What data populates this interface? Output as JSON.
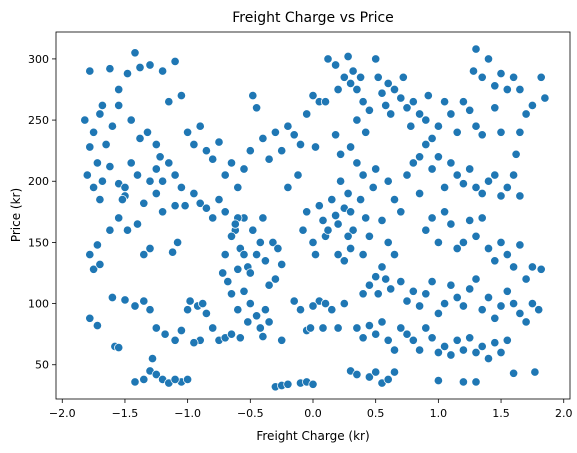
{
  "chart_data": {
    "type": "scatter",
    "title": "Freight Charge vs Price",
    "xlabel": "Freight Charge (kr)",
    "ylabel": "Price (kr)",
    "xlim": [
      -2.05,
      2.05
    ],
    "ylim": [
      22,
      322
    ],
    "xticks": [
      -2.0,
      -1.5,
      -1.0,
      -0.5,
      0.0,
      0.5,
      1.0,
      1.5,
      2.0
    ],
    "xtick_labels": [
      "−2.0",
      "−1.5",
      "−1.0",
      "−0.5",
      "0.0",
      "0.5",
      "1.0",
      "1.5",
      "2.0"
    ],
    "yticks": [
      50,
      100,
      150,
      200,
      250,
      300
    ],
    "ytick_labels": [
      "50",
      "100",
      "150",
      "200",
      "250",
      "300"
    ],
    "grid": false,
    "marker_color": "#1f77b4",
    "points": [
      [
        -1.78,
        290
      ],
      [
        -1.68,
        262
      ],
      [
        -1.62,
        292
      ],
      [
        -1.55,
        275
      ],
      [
        -1.48,
        288
      ],
      [
        -1.42,
        305
      ],
      [
        -1.38,
        293
      ],
      [
        -1.3,
        295
      ],
      [
        -1.2,
        290
      ],
      [
        -1.1,
        298
      ],
      [
        -1.15,
        265
      ],
      [
        -1.05,
        270
      ],
      [
        -1.82,
        250
      ],
      [
        -1.75,
        240
      ],
      [
        -1.7,
        255
      ],
      [
        -1.65,
        230
      ],
      [
        -1.6,
        245
      ],
      [
        -1.55,
        262
      ],
      [
        -1.45,
        250
      ],
      [
        -1.38,
        235
      ],
      [
        -1.32,
        240
      ],
      [
        -1.25,
        230
      ],
      [
        -1.78,
        228
      ],
      [
        -1.72,
        215
      ],
      [
        -1.8,
        205
      ],
      [
        -1.75,
        195
      ],
      [
        -1.7,
        185
      ],
      [
        -1.68,
        200
      ],
      [
        -1.62,
        212
      ],
      [
        -1.55,
        198
      ],
      [
        -1.5,
        188
      ],
      [
        -1.45,
        215
      ],
      [
        -1.4,
        205
      ],
      [
        -1.35,
        182
      ],
      [
        -1.3,
        200
      ],
      [
        -1.25,
        190
      ],
      [
        -1.15,
        215
      ],
      [
        -1.1,
        205
      ],
      [
        -1.05,
        195
      ],
      [
        -1.02,
        180
      ],
      [
        -0.95,
        190
      ],
      [
        -0.9,
        182
      ],
      [
        -0.85,
        178
      ],
      [
        -0.8,
        170
      ],
      [
        -0.75,
        185
      ],
      [
        -0.7,
        175
      ],
      [
        -1.1,
        180
      ],
      [
        -1.2,
        175
      ],
      [
        -1.0,
        240
      ],
      [
        -0.95,
        230
      ],
      [
        -0.9,
        245
      ],
      [
        -0.85,
        225
      ],
      [
        -0.8,
        218
      ],
      [
        -0.75,
        232
      ],
      [
        -0.7,
        205
      ],
      [
        -0.65,
        215
      ],
      [
        -0.6,
        195
      ],
      [
        -0.55,
        210
      ],
      [
        -0.5,
        225
      ],
      [
        -0.45,
        260
      ],
      [
        -0.48,
        270
      ],
      [
        -0.4,
        235
      ],
      [
        -0.35,
        218
      ],
      [
        -0.3,
        240
      ],
      [
        -0.25,
        225
      ],
      [
        -0.2,
        245
      ],
      [
        -0.15,
        238
      ],
      [
        -0.1,
        230
      ],
      [
        -0.05,
        255
      ],
      [
        0.0,
        270
      ],
      [
        0.05,
        265
      ],
      [
        0.02,
        228
      ],
      [
        -0.12,
        205
      ],
      [
        -0.2,
        195
      ],
      [
        -1.78,
        140
      ],
      [
        -1.72,
        148
      ],
      [
        -1.75,
        128
      ],
      [
        -1.7,
        132
      ],
      [
        -1.62,
        160
      ],
      [
        -1.55,
        170
      ],
      [
        -1.48,
        160
      ],
      [
        -1.4,
        165
      ],
      [
        -1.35,
        140
      ],
      [
        -1.3,
        145
      ],
      [
        -1.08,
        150
      ],
      [
        -1.12,
        142
      ],
      [
        -1.6,
        105
      ],
      [
        -1.5,
        103
      ],
      [
        -1.42,
        98
      ],
      [
        -1.35,
        102
      ],
      [
        -1.3,
        95
      ],
      [
        -1.78,
        88
      ],
      [
        -1.72,
        82
      ],
      [
        -1.58,
        65
      ],
      [
        -1.55,
        64
      ],
      [
        -1.3,
        45
      ],
      [
        -1.28,
        55
      ],
      [
        -1.35,
        38
      ],
      [
        -1.42,
        36
      ],
      [
        -1.25,
        42
      ],
      [
        -1.2,
        38
      ],
      [
        -1.15,
        35
      ],
      [
        -1.05,
        36
      ],
      [
        -1.0,
        38
      ],
      [
        -1.1,
        38
      ],
      [
        -1.25,
        80
      ],
      [
        -1.18,
        75
      ],
      [
        -1.1,
        70
      ],
      [
        -1.05,
        78
      ],
      [
        -1.0,
        95
      ],
      [
        -0.98,
        102
      ],
      [
        -0.92,
        98
      ],
      [
        -0.88,
        100
      ],
      [
        -0.85,
        92
      ],
      [
        -0.8,
        80
      ],
      [
        -0.75,
        70
      ],
      [
        -0.7,
        72
      ],
      [
        -0.9,
        70
      ],
      [
        -0.95,
        68
      ],
      [
        -0.62,
        160
      ],
      [
        -0.58,
        145
      ],
      [
        -0.55,
        170
      ],
      [
        -0.52,
        130
      ],
      [
        -0.5,
        125
      ],
      [
        -0.48,
        160
      ],
      [
        -0.45,
        140
      ],
      [
        -0.42,
        150
      ],
      [
        -0.4,
        170
      ],
      [
        -0.38,
        135
      ],
      [
        -0.35,
        115
      ],
      [
        -0.32,
        150
      ],
      [
        -0.3,
        120
      ],
      [
        -0.28,
        145
      ],
      [
        -0.25,
        132
      ],
      [
        -0.55,
        110
      ],
      [
        -0.5,
        100
      ],
      [
        -0.45,
        90
      ],
      [
        -0.42,
        80
      ],
      [
        -0.38,
        95
      ],
      [
        -0.35,
        85
      ],
      [
        -0.6,
        95
      ],
      [
        -0.65,
        75
      ],
      [
        -0.58,
        72
      ],
      [
        -0.52,
        85
      ],
      [
        -0.4,
        73
      ],
      [
        -0.25,
        70
      ],
      [
        -0.15,
        102
      ],
      [
        -0.1,
        95
      ],
      [
        -0.05,
        78
      ],
      [
        -0.08,
        160
      ],
      [
        -0.05,
        175
      ],
      [
        0.0,
        150
      ],
      [
        0.02,
        140
      ],
      [
        0.05,
        180
      ],
      [
        0.08,
        168
      ],
      [
        0.1,
        155
      ],
      [
        0.12,
        160
      ],
      [
        0.15,
        185
      ],
      [
        0.18,
        172
      ],
      [
        0.2,
        165
      ],
      [
        0.22,
        200
      ],
      [
        0.25,
        178
      ],
      [
        0.28,
        190
      ],
      [
        0.3,
        175
      ],
      [
        0.32,
        160
      ],
      [
        0.35,
        215
      ],
      [
        0.38,
        185
      ],
      [
        0.4,
        205
      ],
      [
        0.42,
        170
      ],
      [
        0.45,
        155
      ],
      [
        0.48,
        195
      ],
      [
        0.5,
        210
      ],
      [
        0.55,
        168
      ],
      [
        0.6,
        200
      ],
      [
        0.65,
        185
      ],
      [
        0.7,
        175
      ],
      [
        0.75,
        205
      ],
      [
        0.8,
        215
      ],
      [
        0.85,
        190
      ],
      [
        0.1,
        265
      ],
      [
        0.12,
        300
      ],
      [
        0.18,
        295
      ],
      [
        0.2,
        275
      ],
      [
        0.25,
        285
      ],
      [
        0.28,
        302
      ],
      [
        0.3,
        280
      ],
      [
        0.32,
        290
      ],
      [
        0.35,
        275
      ],
      [
        0.38,
        285
      ],
      [
        0.4,
        265
      ],
      [
        0.45,
        258
      ],
      [
        0.5,
        300
      ],
      [
        0.52,
        285
      ],
      [
        0.55,
        272
      ],
      [
        0.58,
        262
      ],
      [
        0.6,
        280
      ],
      [
        0.65,
        275
      ],
      [
        0.7,
        268
      ],
      [
        0.75,
        260
      ],
      [
        0.8,
        265
      ],
      [
        0.85,
        255
      ],
      [
        0.9,
        250
      ],
      [
        0.92,
        270
      ],
      [
        0.95,
        235
      ],
      [
        1.0,
        245
      ],
      [
        1.05,
        265
      ],
      [
        1.1,
        255
      ],
      [
        1.15,
        240
      ],
      [
        1.2,
        265
      ],
      [
        1.25,
        258
      ],
      [
        1.3,
        245
      ],
      [
        1.35,
        238
      ],
      [
        1.28,
        290
      ],
      [
        1.3,
        308
      ],
      [
        1.35,
        285
      ],
      [
        1.4,
        300
      ],
      [
        1.45,
        278
      ],
      [
        1.5,
        288
      ],
      [
        1.55,
        275
      ],
      [
        1.6,
        285
      ],
      [
        1.65,
        275
      ],
      [
        1.7,
        255
      ],
      [
        1.75,
        262
      ],
      [
        1.82,
        285
      ],
      [
        1.85,
        268
      ],
      [
        1.62,
        222
      ],
      [
        1.65,
        240
      ],
      [
        1.5,
        240
      ],
      [
        1.45,
        260
      ],
      [
        0.9,
        230
      ],
      [
        0.85,
        220
      ],
      [
        0.95,
        210
      ],
      [
        1.0,
        220
      ],
      [
        1.05,
        195
      ],
      [
        1.1,
        215
      ],
      [
        1.15,
        205
      ],
      [
        1.2,
        198
      ],
      [
        1.25,
        210
      ],
      [
        1.3,
        195
      ],
      [
        1.35,
        190
      ],
      [
        1.4,
        200
      ],
      [
        1.45,
        205
      ],
      [
        1.5,
        188
      ],
      [
        1.55,
        195
      ],
      [
        1.6,
        205
      ],
      [
        1.65,
        188
      ],
      [
        0.9,
        160
      ],
      [
        0.95,
        170
      ],
      [
        1.0,
        150
      ],
      [
        1.05,
        175
      ],
      [
        1.1,
        165
      ],
      [
        1.15,
        145
      ],
      [
        1.2,
        150
      ],
      [
        1.25,
        168
      ],
      [
        1.3,
        155
      ],
      [
        1.35,
        170
      ],
      [
        1.4,
        145
      ],
      [
        1.45,
        135
      ],
      [
        1.5,
        150
      ],
      [
        1.55,
        140
      ],
      [
        1.6,
        130
      ],
      [
        1.65,
        148
      ],
      [
        1.7,
        120
      ],
      [
        1.75,
        130
      ],
      [
        1.82,
        128
      ],
      [
        0.6,
        150
      ],
      [
        0.65,
        140
      ],
      [
        0.55,
        130
      ],
      [
        0.5,
        122
      ],
      [
        0.45,
        115
      ],
      [
        0.4,
        108
      ],
      [
        0.52,
        108
      ],
      [
        0.58,
        120
      ],
      [
        0.62,
        112
      ],
      [
        0.7,
        118
      ],
      [
        0.75,
        102
      ],
      [
        0.8,
        110
      ],
      [
        0.85,
        98
      ],
      [
        0.9,
        108
      ],
      [
        0.95,
        118
      ],
      [
        1.0,
        92
      ],
      [
        1.05,
        100
      ],
      [
        1.1,
        115
      ],
      [
        1.15,
        105
      ],
      [
        1.2,
        98
      ],
      [
        1.25,
        112
      ],
      [
        1.3,
        120
      ],
      [
        1.35,
        95
      ],
      [
        1.4,
        105
      ],
      [
        1.45,
        88
      ],
      [
        1.5,
        98
      ],
      [
        1.55,
        110
      ],
      [
        1.6,
        100
      ],
      [
        1.65,
        92
      ],
      [
        1.7,
        85
      ],
      [
        1.75,
        100
      ],
      [
        1.8,
        95
      ],
      [
        0.35,
        80
      ],
      [
        0.4,
        72
      ],
      [
        0.45,
        82
      ],
      [
        0.5,
        75
      ],
      [
        0.55,
        85
      ],
      [
        0.6,
        70
      ],
      [
        0.65,
        62
      ],
      [
        0.7,
        80
      ],
      [
        0.75,
        75
      ],
      [
        0.8,
        70
      ],
      [
        0.85,
        62
      ],
      [
        0.9,
        80
      ],
      [
        0.95,
        72
      ],
      [
        1.0,
        60
      ],
      [
        1.05,
        65
      ],
      [
        1.1,
        58
      ],
      [
        1.15,
        70
      ],
      [
        1.2,
        62
      ],
      [
        1.25,
        72
      ],
      [
        1.3,
        60
      ],
      [
        1.35,
        65
      ],
      [
        1.4,
        55
      ],
      [
        1.45,
        68
      ],
      [
        1.5,
        60
      ],
      [
        1.55,
        70
      ],
      [
        0.3,
        45
      ],
      [
        0.35,
        42
      ],
      [
        0.45,
        40
      ],
      [
        0.5,
        44
      ],
      [
        0.55,
        35
      ],
      [
        0.6,
        38
      ],
      [
        0.65,
        44
      ],
      [
        0.2,
        80
      ],
      [
        0.25,
        100
      ],
      [
        0.15,
        95
      ],
      [
        0.05,
        102
      ],
      [
        0.0,
        98
      ],
      [
        -0.02,
        80
      ],
      [
        0.08,
        80
      ],
      [
        0.1,
        100
      ],
      [
        1.0,
        37
      ],
      [
        1.2,
        36
      ],
      [
        1.3,
        36
      ],
      [
        1.6,
        43
      ],
      [
        1.77,
        44
      ],
      [
        -0.3,
        32
      ],
      [
        -0.25,
        33
      ],
      [
        -0.2,
        34
      ],
      [
        -0.1,
        35
      ],
      [
        -0.05,
        36
      ],
      [
        0.0,
        34
      ],
      [
        0.4,
        140
      ],
      [
        0.3,
        145
      ],
      [
        0.25,
        135
      ],
      [
        0.2,
        140
      ],
      [
        0.28,
        155
      ],
      [
        -0.7,
        140
      ],
      [
        -0.72,
        125
      ],
      [
        -0.68,
        118
      ],
      [
        -0.65,
        108
      ],
      [
        -0.6,
        128
      ],
      [
        -0.55,
        140
      ],
      [
        -1.5,
        195
      ],
      [
        -1.52,
        185
      ],
      [
        -1.2,
        200
      ],
      [
        -1.25,
        210
      ],
      [
        -1.22,
        220
      ],
      [
        -0.6,
        170
      ],
      [
        -0.62,
        165
      ],
      [
        -0.65,
        155
      ],
      [
        0.62,
        255
      ],
      [
        0.72,
        285
      ],
      [
        0.78,
        245
      ],
      [
        0.42,
        240
      ],
      [
        0.35,
        250
      ],
      [
        0.3,
        228
      ],
      [
        0.22,
        222
      ],
      [
        0.18,
        238
      ]
    ]
  }
}
